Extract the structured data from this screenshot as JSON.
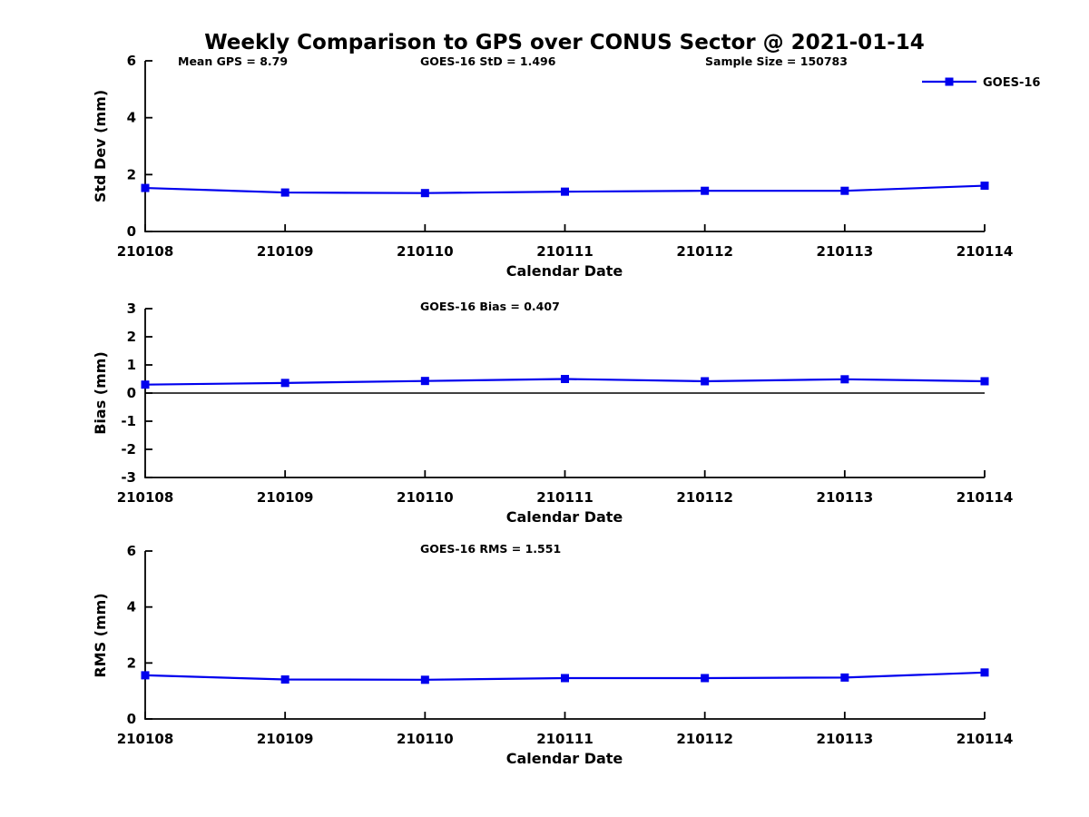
{
  "title": "Weekly Comparison to GPS over CONUS Sector @ 2021-01-14",
  "colors": {
    "series": "#0000EE",
    "axis": "#000000",
    "text": "#000000"
  },
  "chart_data": [
    {
      "type": "line",
      "title": "Weekly Comparison to GPS over CONUS Sector @ 2021-01-14",
      "x": [
        210108,
        210109,
        210110,
        210111,
        210112,
        210113,
        210114
      ],
      "xtick_labels": [
        "210108",
        "210109",
        "210110",
        "210111",
        "210112",
        "210113",
        "210114"
      ],
      "series": [
        {
          "name": "GOES-16",
          "color": "#0000EE",
          "marker": "square",
          "values": [
            1.53,
            1.37,
            1.35,
            1.4,
            1.43,
            1.43,
            1.61
          ]
        }
      ],
      "xlabel": "Calendar Date",
      "ylabel": "Std Dev (mm)",
      "ylim": [
        0,
        6
      ],
      "yticks": [
        0,
        2,
        4,
        6
      ],
      "grid": false,
      "zero_line": false,
      "annotations": [
        {
          "text": "Mean GPS = 8.79",
          "xfrac": 0.039
        },
        {
          "text": "GOES-16 StD = 1.496",
          "xfrac": 0.328
        },
        {
          "text": "Sample Size = 150783",
          "xfrac": 0.667
        }
      ],
      "legend": {
        "label": "GOES-16",
        "position": "top-right",
        "visible": true
      }
    },
    {
      "type": "line",
      "x": [
        210108,
        210109,
        210110,
        210111,
        210112,
        210113,
        210114
      ],
      "xtick_labels": [
        "210108",
        "210109",
        "210110",
        "210111",
        "210112",
        "210113",
        "210114"
      ],
      "series": [
        {
          "name": "GOES-16",
          "color": "#0000EE",
          "marker": "square",
          "values": [
            0.3,
            0.36,
            0.43,
            0.5,
            0.42,
            0.49,
            0.42
          ]
        }
      ],
      "xlabel": "Calendar Date",
      "ylabel": "Bias (mm)",
      "ylim": [
        -3,
        3
      ],
      "yticks": [
        3,
        2,
        1,
        0,
        -1,
        -2,
        -3
      ],
      "grid": false,
      "zero_line": true,
      "annotations": [
        {
          "text": "GOES-16 Bias  = 0.407",
          "xfrac": 0.328
        }
      ],
      "legend": {
        "visible": false
      }
    },
    {
      "type": "line",
      "x": [
        210108,
        210109,
        210110,
        210111,
        210112,
        210113,
        210114
      ],
      "xtick_labels": [
        "210108",
        "210109",
        "210110",
        "210111",
        "210112",
        "210113",
        "210114"
      ],
      "series": [
        {
          "name": "GOES-16",
          "color": "#0000EE",
          "marker": "square",
          "values": [
            1.56,
            1.41,
            1.4,
            1.46,
            1.46,
            1.48,
            1.66
          ]
        }
      ],
      "xlabel": "Calendar Date",
      "ylabel": "RMS (mm)",
      "ylim": [
        0,
        6
      ],
      "yticks": [
        0,
        2,
        4,
        6
      ],
      "grid": false,
      "zero_line": false,
      "annotations": [
        {
          "text": "GOES-16 RMS = 1.551",
          "xfrac": 0.328
        }
      ],
      "legend": {
        "visible": false
      }
    }
  ]
}
